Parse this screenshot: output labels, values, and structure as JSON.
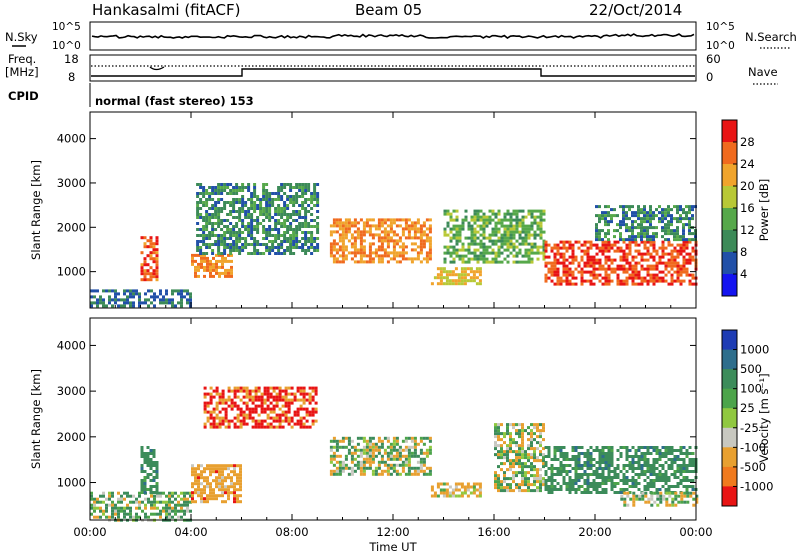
{
  "header": {
    "station": "Hankasalmi (fitACF)",
    "beam": "Beam 05",
    "date": "22/Oct/2014"
  },
  "top_panels": {
    "nsky_label": "N.Sky",
    "nsky_tick_top": "10^5",
    "nsky_tick_bottom": "10^0",
    "nsearch_label": "N.Search",
    "nsearch_tick_top": "10^5",
    "nsearch_tick_bottom": "10^0",
    "freq_label_1": "Freq.",
    "freq_label_2": "[MHz]",
    "freq_tick_top": "18",
    "freq_tick_bottom": "8",
    "nave_label": "Nave",
    "nave_tick_top": "60",
    "nave_tick_bottom": "0",
    "cpid_label": "CPID",
    "cpid_text": "normal (fast stereo) 153"
  },
  "y_axis_label": "Slant Range [km]",
  "y_ticks": [
    "1000",
    "2000",
    "3000",
    "4000"
  ],
  "x_ticks": [
    "00:00",
    "04:00",
    "08:00",
    "12:00",
    "16:00",
    "20:00",
    "00:00"
  ],
  "x_label": "Time UT",
  "power_colorbar": {
    "label": "Power [dB]",
    "ticks": [
      "4",
      "8",
      "12",
      "16",
      "20",
      "24",
      "28"
    ],
    "colors": [
      "#1414f0",
      "#2150a8",
      "#3c8a58",
      "#56a84a",
      "#b8c836",
      "#f0a42c",
      "#f06a1e",
      "#e81414"
    ]
  },
  "velocity_colorbar": {
    "label": "Velocity [m s⁻¹]",
    "ticks": [
      "1000",
      "500",
      "100",
      "25",
      "-25",
      "-100",
      "-500",
      "-1000"
    ],
    "colors": [
      "#1e3cb4",
      "#2e6e8c",
      "#3c8c5a",
      "#4ca44a",
      "#90c840",
      "#c8c8c0",
      "#e8a030",
      "#f07a1e",
      "#e81414"
    ]
  },
  "chart_data": [
    {
      "type": "heatmap",
      "title": "Power",
      "xlabel": "Time UT",
      "ylabel": "Slant Range [km]",
      "xlim": [
        "00:00",
        "24:00"
      ],
      "ylim": [
        180,
        4600
      ],
      "colorbar_label": "Power [dB]",
      "colorbar_range": [
        0,
        32
      ],
      "regions": [
        {
          "t0": 0.0,
          "t1": 4.0,
          "r0": 200,
          "r1": 600,
          "value": 8
        },
        {
          "t0": 2.0,
          "t1": 2.6,
          "r0": 800,
          "r1": 1800,
          "value": 27
        },
        {
          "t0": 4.0,
          "t1": 5.6,
          "r0": 900,
          "r1": 1400,
          "value": 24
        },
        {
          "t0": 4.2,
          "t1": 9.0,
          "r0": 1400,
          "r1": 3000,
          "value": 10
        },
        {
          "t0": 9.5,
          "t1": 13.5,
          "r0": 1200,
          "r1": 2200,
          "value": 24
        },
        {
          "t0": 13.5,
          "t1": 15.5,
          "r0": 700,
          "r1": 1100,
          "value": 20
        },
        {
          "t0": 14.0,
          "t1": 18.0,
          "r0": 1200,
          "r1": 2400,
          "value": 14
        },
        {
          "t0": 18.0,
          "t1": 24.0,
          "r0": 700,
          "r1": 1700,
          "value": 28
        },
        {
          "t0": 20.0,
          "t1": 24.0,
          "r0": 1700,
          "r1": 2500,
          "value": 10
        }
      ]
    },
    {
      "type": "heatmap",
      "title": "Velocity",
      "xlabel": "Time UT",
      "ylabel": "Slant Range [km]",
      "xlim": [
        "00:00",
        "24:00"
      ],
      "ylim": [
        180,
        4600
      ],
      "colorbar_label": "Velocity [m s⁻¹]",
      "colorbar_range": [
        -1000,
        1000
      ],
      "regions": [
        {
          "t0": 0.0,
          "t1": 4.0,
          "r0": 200,
          "r1": 800,
          "value": 100
        },
        {
          "t0": 2.0,
          "t1": 2.6,
          "r0": 800,
          "r1": 1800,
          "value": 300
        },
        {
          "t0": 4.0,
          "t1": 6.0,
          "r0": 600,
          "r1": 1400,
          "value": -300
        },
        {
          "t0": 4.5,
          "t1": 9.0,
          "r0": 2200,
          "r1": 3100,
          "value": -600
        },
        {
          "t0": 9.5,
          "t1": 13.5,
          "r0": 1200,
          "r1": 2000,
          "value": 0
        },
        {
          "t0": 13.5,
          "t1": 15.5,
          "r0": 700,
          "r1": 1000,
          "value": -200
        },
        {
          "t0": 16.0,
          "t1": 18.0,
          "r0": 800,
          "r1": 2300,
          "value": 0
        },
        {
          "t0": 18.0,
          "t1": 24.0,
          "r0": 800,
          "r1": 1800,
          "value": 300
        },
        {
          "t0": 21.0,
          "t1": 24.0,
          "r0": 500,
          "r1": 800,
          "value": 0
        }
      ]
    }
  ]
}
